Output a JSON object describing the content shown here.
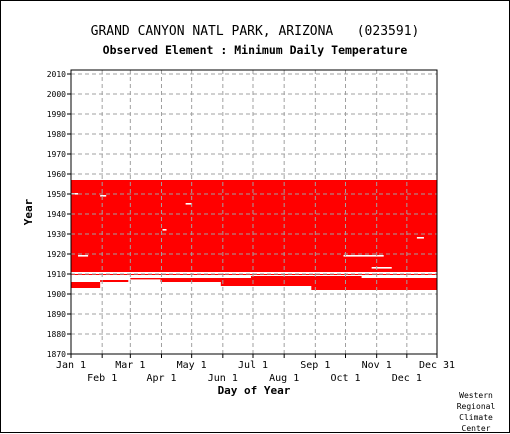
{
  "chart_data": {
    "type": "heatmap",
    "title": "GRAND CANYON NATL PARK, ARIZONA   (023591)",
    "subtitle": "Observed Element : Minimum Daily Temperature",
    "xlabel": "Day of Year",
    "ylabel": "Year",
    "xlim": [
      1,
      365
    ],
    "ylim": [
      1870,
      2012
    ],
    "y_ticks": [
      1870,
      1880,
      1890,
      1900,
      1910,
      1920,
      1930,
      1940,
      1950,
      1960,
      1970,
      1980,
      1990,
      2000,
      2010
    ],
    "x_ticks_upper": [
      {
        "label": "Jan 1",
        "day": 1
      },
      {
        "label": "Mar 1",
        "day": 60
      },
      {
        "label": "May 1",
        "day": 121
      },
      {
        "label": "Jul 1",
        "day": 182
      },
      {
        "label": "Sep 1",
        "day": 244
      },
      {
        "label": "Nov 1",
        "day": 305
      },
      {
        "label": "Dec 31",
        "day": 365
      }
    ],
    "x_ticks_lower": [
      {
        "label": "Feb 1",
        "day": 32
      },
      {
        "label": "Apr 1",
        "day": 91
      },
      {
        "label": "Jun 1",
        "day": 152
      },
      {
        "label": "Aug 1",
        "day": 213
      },
      {
        "label": "Oct 1",
        "day": 274
      },
      {
        "label": "Dec 1",
        "day": 335
      }
    ],
    "grid": true,
    "data_color": "#ff0000",
    "series": [
      {
        "values": [
          {
            "year_start": 1911,
            "year_end": 1957,
            "day_start": 1,
            "day_end": 365
          },
          {
            "year_start": 1909.5,
            "year_end": 1910,
            "day_start": 1,
            "day_end": 365
          },
          {
            "year_start": 1908,
            "year_end": 1909,
            "day_start": 180,
            "day_end": 290
          },
          {
            "year_start": 1907.3,
            "year_end": 1908,
            "day_start": 60,
            "day_end": 90
          },
          {
            "year_start": 1906,
            "year_end": 1908,
            "day_start": 90,
            "day_end": 365
          },
          {
            "year_start": 1906,
            "year_end": 1907,
            "day_start": 30,
            "day_end": 58
          },
          {
            "year_start": 1904,
            "year_end": 1906,
            "day_start": 150,
            "day_end": 365
          },
          {
            "year_start": 1903,
            "year_end": 1906,
            "day_start": 1,
            "day_end": 30
          },
          {
            "year_start": 1902,
            "year_end": 1904,
            "day_start": 240,
            "day_end": 365
          }
        ]
      }
    ],
    "gaps": [
      {
        "year": 1950,
        "day_start": 1,
        "day_end": 8
      },
      {
        "year": 1949,
        "day_start": 30,
        "day_end": 36
      },
      {
        "year": 1945,
        "day_start": 115,
        "day_end": 121
      },
      {
        "year": 1919,
        "day_start": 8,
        "day_end": 18
      },
      {
        "year": 1919,
        "day_start": 272,
        "day_end": 312
      },
      {
        "year": 1913,
        "day_start": 300,
        "day_end": 320
      },
      {
        "year": 1928,
        "day_start": 345,
        "day_end": 352
      },
      {
        "year": 1932,
        "day_start": 92,
        "day_end": 96
      }
    ]
  },
  "credit": [
    "Western",
    "Regional",
    "Climate",
    "Center"
  ]
}
